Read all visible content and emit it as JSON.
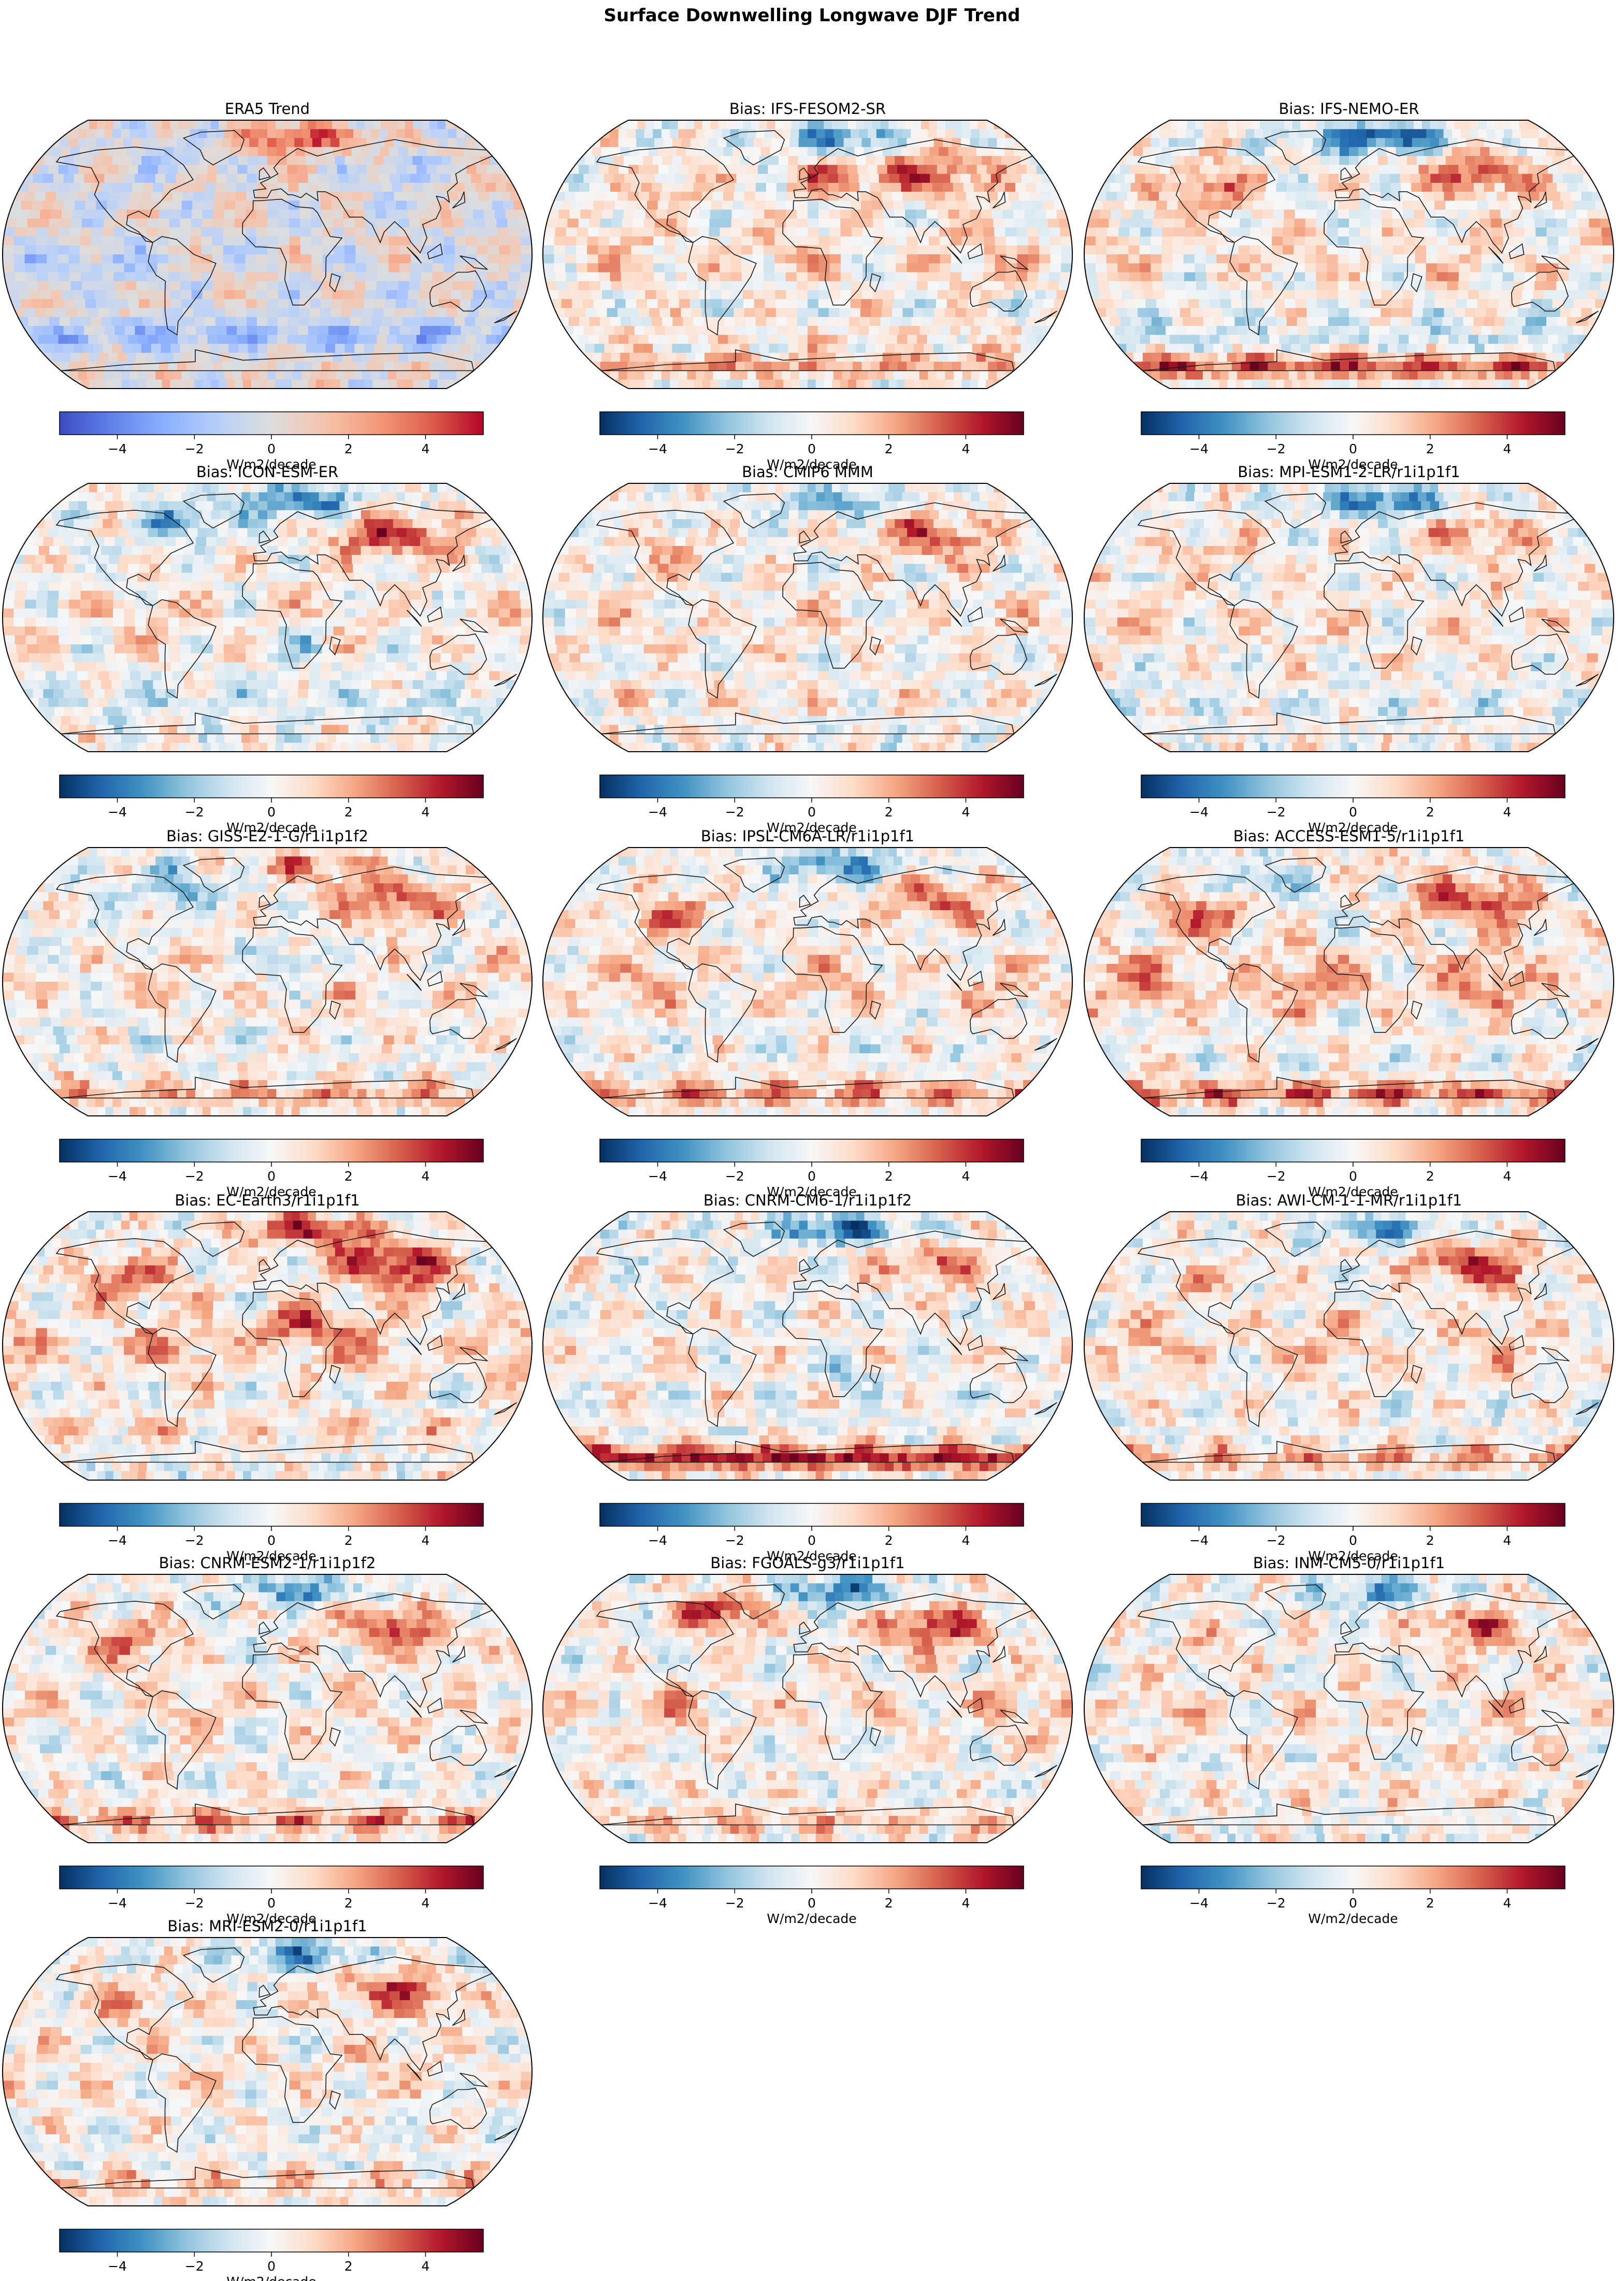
{
  "figure": {
    "title": "Surface Downwelling Longwave DJF Trend"
  },
  "chart_data": [
    {
      "type": "heatmap",
      "title": "ERA5 Trend",
      "colormap": "coolwarm",
      "colorbar": {
        "label": "W/m2/decade",
        "ticks": [
          -4,
          -2,
          0,
          2,
          4
        ],
        "range": [
          -5.5,
          5.5
        ]
      },
      "pattern": {
        "arctic_atlantic": 4.5,
        "canada_greenland": -1.5,
        "europe": 1.0,
        "siberia": -1.0,
        "north_pacific": 1.5,
        "tropical_pacific": -1.5,
        "southern_ocean": -2.0,
        "antarctica": 0.5
      }
    },
    {
      "type": "heatmap",
      "title": "Bias: IFS-FESOM2-SR",
      "colormap": "RdBu_r",
      "colorbar": {
        "label": "W/m2/decade",
        "ticks": [
          -4,
          -2,
          0,
          2,
          4
        ],
        "range": [
          -5.5,
          5.5
        ]
      },
      "pattern": {
        "arctic_atlantic": -3.5,
        "europe": 3.0,
        "siberia": 3.5,
        "north_america": 1.5,
        "tropics": 1.5,
        "southern_ocean": 0.5,
        "antarctica": 2.0
      }
    },
    {
      "type": "heatmap",
      "title": "Bias: IFS-NEMO-ER",
      "colormap": "RdBu_r",
      "colorbar": {
        "label": "W/m2/decade",
        "ticks": [
          -4,
          -2,
          0,
          2,
          4
        ],
        "range": [
          -5.5,
          5.5
        ]
      },
      "pattern": {
        "arctic_atlantic": -5.0,
        "north_america": 3.0,
        "siberia": 3.5,
        "tropics": 1.0,
        "southern_ocean": -1.0,
        "antarctica": 3.5
      }
    },
    {
      "type": "heatmap",
      "title": "Bias: ICON-ESM-ER",
      "colormap": "RdBu_r",
      "colorbar": {
        "label": "W/m2/decade",
        "ticks": [
          -4,
          -2,
          0,
          2,
          4
        ],
        "range": [
          -5.5,
          5.5
        ]
      },
      "pattern": {
        "arctic_atlantic": -4.0,
        "canada_greenland": -2.5,
        "siberia": 4.0,
        "africa_south": -2.0,
        "tropics": 1.0,
        "southern_ocean": -1.0
      }
    },
    {
      "type": "heatmap",
      "title": "Bias: CMIP6 MMM",
      "colormap": "RdBu_r",
      "colorbar": {
        "label": "W/m2/decade",
        "ticks": [
          -4,
          -2,
          0,
          2,
          4
        ],
        "range": [
          -5.5,
          5.5
        ]
      },
      "pattern": {
        "arctic_atlantic": -2.5,
        "siberia": 3.5,
        "north_america": 1.5,
        "tropics": 1.0,
        "southern_ocean": 0.5
      }
    },
    {
      "type": "heatmap",
      "title": "Bias: MPI-ESM1-2-LR/r1i1p1f1",
      "colormap": "RdBu_r",
      "colorbar": {
        "label": "W/m2/decade",
        "ticks": [
          -4,
          -2,
          0,
          2,
          4
        ],
        "range": [
          -5.5,
          5.5
        ]
      },
      "pattern": {
        "arctic_atlantic": -4.0,
        "siberia": 2.5,
        "north_america": 1.5,
        "tropics": 1.0,
        "southern_ocean": -0.5
      }
    },
    {
      "type": "heatmap",
      "title": "Bias: GISS-E2-1-G/r1i1p1f2",
      "colormap": "RdBu_r",
      "colorbar": {
        "label": "W/m2/decade",
        "ticks": [
          -4,
          -2,
          0,
          2,
          4
        ],
        "range": [
          -5.5,
          5.5
        ]
      },
      "pattern": {
        "arctic_atlantic": 2.5,
        "canada_greenland": -2.5,
        "siberia": 3.5,
        "africa_north": -2.0,
        "tropics": 1.0,
        "antarctica": 2.0
      }
    },
    {
      "type": "heatmap",
      "title": "Bias: IPSL-CM6A-LR/r1i1p1f1",
      "colormap": "RdBu_r",
      "colorbar": {
        "label": "W/m2/decade",
        "ticks": [
          -4,
          -2,
          0,
          2,
          4
        ],
        "range": [
          -5.5,
          5.5
        ]
      },
      "pattern": {
        "arctic_atlantic": -3.5,
        "north_america": 2.5,
        "siberia": 3.0,
        "tropics": 1.5,
        "antarctica": 2.5
      }
    },
    {
      "type": "heatmap",
      "title": "Bias: ACCESS-ESM1-5/r1i1p1f1",
      "colormap": "RdBu_r",
      "colorbar": {
        "label": "W/m2/decade",
        "ticks": [
          -4,
          -2,
          0,
          2,
          4
        ],
        "range": [
          -5.5,
          5.5
        ]
      },
      "pattern": {
        "arctic_atlantic": 1.0,
        "canada_greenland": -2.0,
        "north_america": 3.5,
        "siberia": 4.0,
        "tropics": 2.5,
        "antarctica": 3.0
      }
    },
    {
      "type": "heatmap",
      "title": "Bias: EC-Earth3/r1i1p1f1",
      "colormap": "RdBu_r",
      "colorbar": {
        "label": "W/m2/decade",
        "ticks": [
          -4,
          -2,
          0,
          2,
          4
        ],
        "range": [
          -5.5,
          5.5
        ]
      },
      "pattern": {
        "arctic_atlantic": 4.5,
        "north_america": 3.5,
        "siberia": 5.0,
        "africa_north": 3.5,
        "tropics": 2.0,
        "southern_ocean": 1.0
      }
    },
    {
      "type": "heatmap",
      "title": "Bias: CNRM-CM6-1/r1i1p1f2",
      "colormap": "RdBu_r",
      "colorbar": {
        "label": "W/m2/decade",
        "ticks": [
          -4,
          -2,
          0,
          2,
          4
        ],
        "range": [
          -5.5,
          5.5
        ]
      },
      "pattern": {
        "arctic_atlantic": -4.5,
        "siberia": 3.0,
        "africa_south": -2.0,
        "tropics": 0.5,
        "antarctica": 4.5
      }
    },
    {
      "type": "heatmap",
      "title": "Bias: AWI-CM-1-1-MR/r1i1p1f1",
      "colormap": "RdBu_r",
      "colorbar": {
        "label": "W/m2/decade",
        "ticks": [
          -4,
          -2,
          0,
          2,
          4
        ],
        "range": [
          -5.5,
          5.5
        ]
      },
      "pattern": {
        "arctic_atlantic": -3.0,
        "siberia": 4.0,
        "north_america": 1.5,
        "tropics": 1.5,
        "antarctica": 2.0
      }
    },
    {
      "type": "heatmap",
      "title": "Bias: CNRM-ESM2-1/r1i1p1f2",
      "colormap": "RdBu_r",
      "colorbar": {
        "label": "W/m2/decade",
        "ticks": [
          -4,
          -2,
          0,
          2,
          4
        ],
        "range": [
          -5.5,
          5.5
        ]
      },
      "pattern": {
        "arctic_atlantic": -3.0,
        "north_america": 3.0,
        "siberia": 3.5,
        "tropics": 1.0,
        "antarctica": 2.5
      }
    },
    {
      "type": "heatmap",
      "title": "Bias: FGOALS-g3/r1i1p1f1",
      "colormap": "RdBu_r",
      "colorbar": {
        "label": "W/m2/decade",
        "ticks": [
          -4,
          -2,
          0,
          2,
          4
        ],
        "range": [
          -5.5,
          5.5
        ]
      },
      "pattern": {
        "arctic_atlantic": -4.0,
        "canada_greenland": 4.0,
        "siberia": 4.0,
        "africa_south": -2.0,
        "tropics": 1.5,
        "antarctica": 1.5
      }
    },
    {
      "type": "heatmap",
      "title": "Bias: INM-CM5-0/r1i1p1f1",
      "colormap": "RdBu_r",
      "colorbar": {
        "label": "W/m2/decade",
        "ticks": [
          -4,
          -2,
          0,
          2,
          4
        ],
        "range": [
          -5.5,
          5.5
        ]
      },
      "pattern": {
        "arctic_atlantic": -3.0,
        "siberia": 3.0,
        "north_america": 1.0,
        "tropics": 1.0,
        "southern_ocean": 0.5
      }
    },
    {
      "type": "heatmap",
      "title": "Bias: MRI-ESM2-0/r1i1p1f1",
      "colormap": "RdBu_r",
      "colorbar": {
        "label": "W/m2/decade",
        "ticks": [
          -4,
          -2,
          0,
          2,
          4
        ],
        "range": [
          -5.5,
          5.5
        ]
      },
      "pattern": {
        "arctic_atlantic": -3.5,
        "siberia": 3.5,
        "north_america": 2.0,
        "tropics": 1.0,
        "antarctica": 1.5
      }
    }
  ]
}
